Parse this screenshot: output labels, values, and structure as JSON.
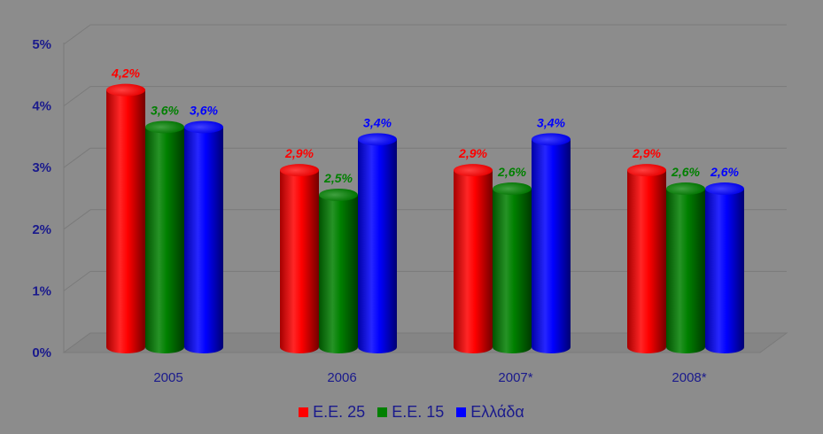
{
  "chart_data": {
    "type": "bar",
    "categories": [
      "2005",
      "2006",
      "2007*",
      "2008*"
    ],
    "series": [
      {
        "name": "Ε.Ε. 25",
        "color": "#ff0000",
        "values": [
          4.2,
          2.9,
          2.9,
          2.9
        ],
        "labels": [
          "4,2%",
          "2,9%",
          "2,9%",
          "2,9%"
        ]
      },
      {
        "name": "Ε.Ε. 15",
        "color": "#008000",
        "values": [
          3.6,
          2.5,
          2.6,
          2.6
        ],
        "labels": [
          "3,6%",
          "2,5%",
          "2,6%",
          "2,6%"
        ]
      },
      {
        "name": "Ελλάδα",
        "color": "#0000ff",
        "values": [
          3.6,
          3.4,
          3.4,
          2.6
        ],
        "labels": [
          "3,6%",
          "3,4%",
          "3,4%",
          "2,6%"
        ]
      }
    ],
    "ylim": [
      0,
      5
    ],
    "yticks": [
      "0%",
      "1%",
      "2%",
      "3%",
      "4%",
      "5%"
    ],
    "title": "",
    "xlabel": "",
    "ylabel": "",
    "grid": true,
    "legend_position": "bottom",
    "background": "#8c8c8c"
  }
}
